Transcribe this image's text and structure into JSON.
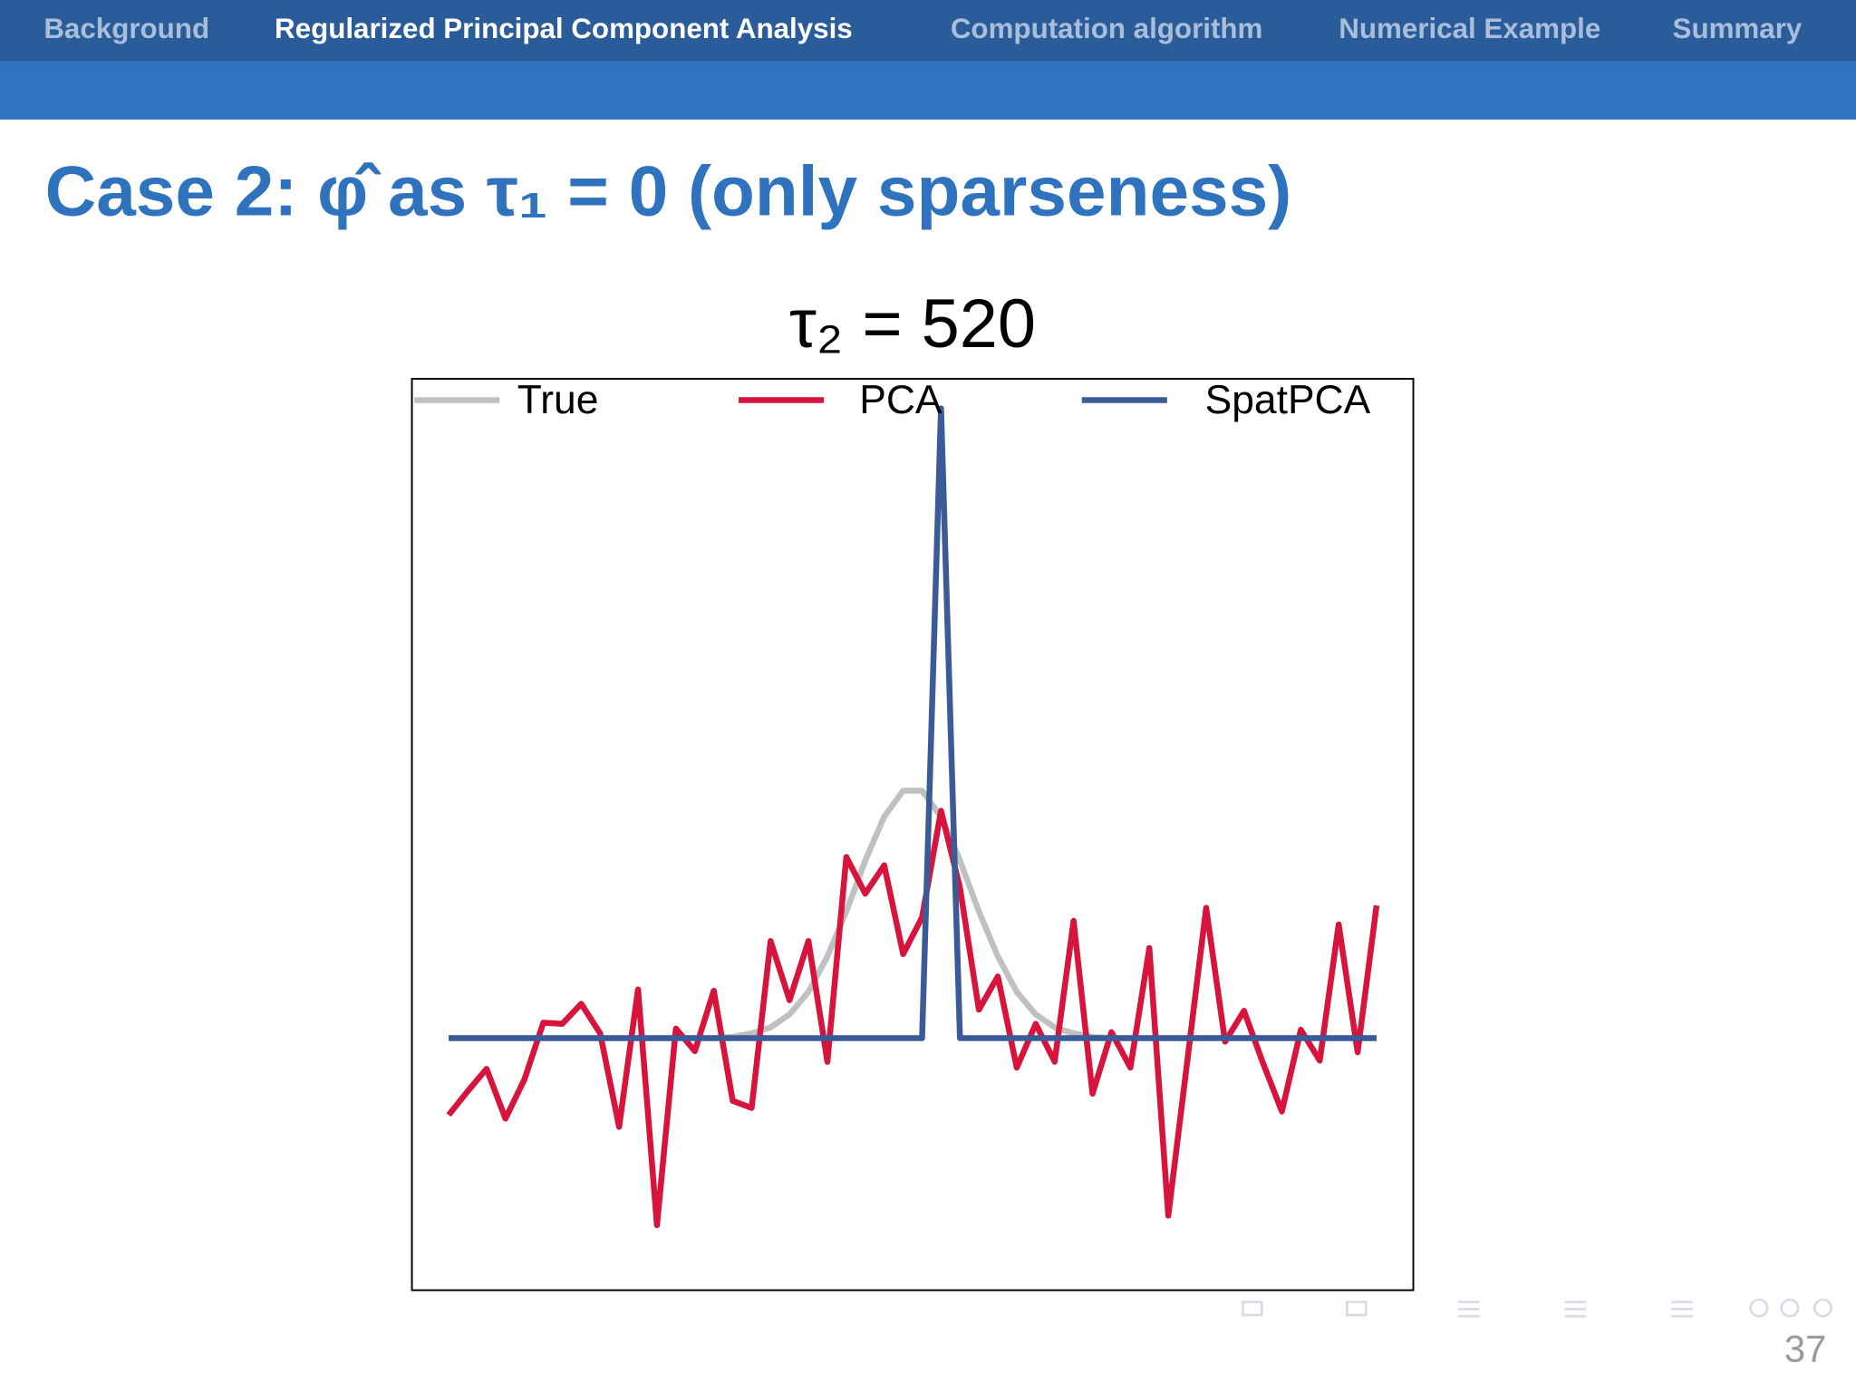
{
  "nav": {
    "items": [
      "Background",
      "Regularized Principal Component Analysis",
      "Computation algorithm",
      "Numerical Example",
      "Summary"
    ],
    "active": 1
  },
  "slide": {
    "heading": "Case 2: φ̂ as τ₁ = 0  (only sparseness)",
    "page_number": "37"
  },
  "chart_data": {
    "type": "line",
    "title": "τ₂ = 520",
    "x": [
      1,
      2,
      3,
      4,
      5,
      6,
      7,
      8,
      9,
      10,
      11,
      12,
      13,
      14,
      15,
      16,
      17,
      18,
      19,
      20,
      21,
      22,
      23,
      24,
      25,
      26,
      27,
      28,
      29,
      30,
      31,
      32,
      33,
      34,
      35,
      36,
      37,
      38,
      39,
      40,
      41,
      42,
      43,
      44,
      45,
      46,
      47,
      48,
      49,
      50
    ],
    "xlim": [
      -0.94,
      51.94
    ],
    "ylim": [
      -2.13,
      5.57
    ],
    "legend": "top",
    "series": [
      {
        "name": "True",
        "color": "#c0c0c0",
        "values": [
          0,
          0,
          0,
          0,
          0,
          0,
          0,
          0,
          0,
          0,
          0,
          0,
          0,
          0,
          0,
          0.01,
          0.04,
          0.09,
          0.2,
          0.39,
          0.69,
          1.07,
          1.5,
          1.87,
          2.09,
          2.09,
          1.87,
          1.5,
          1.07,
          0.69,
          0.39,
          0.2,
          0.09,
          0.04,
          0.01,
          0,
          0,
          0,
          0,
          0,
          0,
          0,
          0,
          0,
          0,
          0,
          0,
          0,
          0,
          0
        ]
      },
      {
        "name": "PCA",
        "color": "#d7143c",
        "values": [
          -0.65,
          -0.45,
          -0.26,
          -0.68,
          -0.35,
          0.13,
          0.12,
          0.29,
          0.04,
          -0.75,
          0.41,
          -1.58,
          0.08,
          -0.11,
          0.4,
          -0.53,
          -0.59,
          0.82,
          0.32,
          0.82,
          -0.2,
          1.53,
          1.22,
          1.46,
          0.71,
          1.02,
          1.92,
          1.27,
          0.24,
          0.52,
          -0.25,
          0.12,
          -0.2,
          0.99,
          -0.47,
          0.05,
          -0.25,
          0.76,
          -1.5,
          -0.2,
          1.1,
          -0.03,
          0.23,
          -0.21,
          -0.62,
          0.07,
          -0.19,
          0.96,
          -0.12,
          1.12
        ]
      },
      {
        "name": "SpatPCA",
        "color": "#3a5a98",
        "values": [
          0,
          0,
          0,
          0,
          0,
          0,
          0,
          0,
          0,
          0,
          0,
          0,
          0,
          0,
          0,
          0,
          0,
          0,
          0,
          0,
          0,
          0,
          0,
          0,
          0,
          0,
          5.32,
          0,
          0,
          0,
          0,
          0,
          0,
          0,
          0,
          0,
          0,
          0,
          0,
          0,
          0,
          0,
          0,
          0,
          0,
          0,
          0,
          0,
          0,
          0
        ]
      }
    ]
  }
}
